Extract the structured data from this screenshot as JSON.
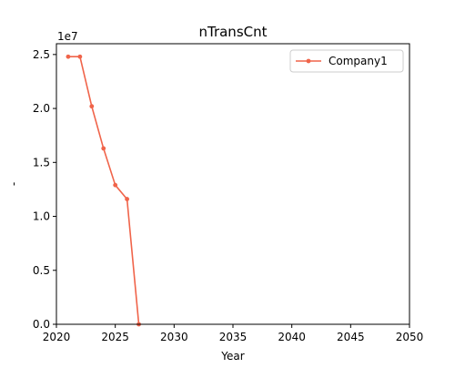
{
  "chart_data": {
    "type": "line",
    "title": "nTransCnt",
    "xlabel": "Year",
    "ylabel": "-",
    "y_multiplier_label": "1e7",
    "y_multiplier": 10000000,
    "xlim": [
      2020,
      2050
    ],
    "ylim": [
      0,
      26000000
    ],
    "x_ticks": [
      2020,
      2025,
      2030,
      2035,
      2040,
      2045,
      2050
    ],
    "y_ticks": [
      0,
      5000000,
      10000000,
      15000000,
      20000000,
      25000000
    ],
    "y_tick_labels": [
      "0.0",
      "0.5",
      "1.0",
      "1.5",
      "2.0",
      "2.5"
    ],
    "grid": false,
    "legend_position": "top-right",
    "series": [
      {
        "name": "Company1",
        "color": "#f0644a",
        "marker": "circle",
        "x": [
          2021,
          2022,
          2023,
          2024,
          2025,
          2026,
          2027
        ],
        "y": [
          24800000,
          24800000,
          20200000,
          16300000,
          12900000,
          11600000,
          0
        ]
      }
    ]
  }
}
